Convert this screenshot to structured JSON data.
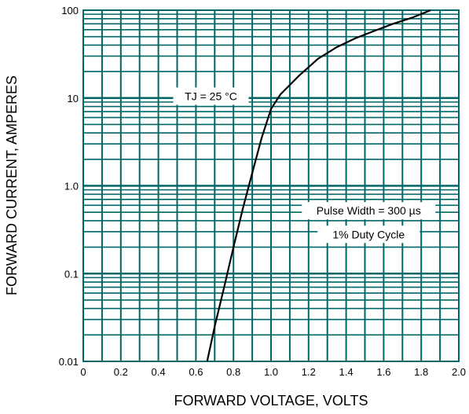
{
  "chart_data": {
    "type": "line",
    "title": "",
    "xlabel": "FORWARD VOLTAGE, VOLTS",
    "ylabel": "FORWARD CURRENT, AMPERES",
    "xlim": [
      0,
      2.0
    ],
    "ylim": [
      0.01,
      100
    ],
    "y_scale": "log",
    "grid": true,
    "grid_color": "#006666",
    "curve_color": "#000000",
    "x_ticks": [
      {
        "value": 0,
        "label": "0"
      },
      {
        "value": 0.2,
        "label": "0.2"
      },
      {
        "value": 0.4,
        "label": "0.4"
      },
      {
        "value": 0.6,
        "label": "0.6"
      },
      {
        "value": 0.8,
        "label": "0.8"
      },
      {
        "value": 1.0,
        "label": "1.0"
      },
      {
        "value": 1.2,
        "label": "1.2"
      },
      {
        "value": 1.4,
        "label": "1.4"
      },
      {
        "value": 1.6,
        "label": "1.6"
      },
      {
        "value": 1.8,
        "label": "1.8"
      },
      {
        "value": 2.0,
        "label": "2.0"
      }
    ],
    "y_ticks": [
      {
        "value": 100,
        "label": "100"
      },
      {
        "value": 10,
        "label": "10"
      },
      {
        "value": 1,
        "label": "1.0"
      },
      {
        "value": 0.1,
        "label": "0.1"
      },
      {
        "value": 0.01,
        "label": "0.01"
      }
    ],
    "series": [
      {
        "x": [
          0.66,
          0.7,
          0.75,
          0.8,
          0.85,
          0.9,
          0.95,
          1.0,
          1.05,
          1.15,
          1.25,
          1.35,
          1.45,
          1.55,
          1.65,
          1.75,
          1.85
        ],
        "y": [
          0.01,
          0.025,
          0.07,
          0.2,
          0.55,
          1.4,
          3.5,
          7.5,
          11,
          18,
          28,
          38,
          48,
          58,
          70,
          82,
          100
        ]
      }
    ],
    "annotations": [
      {
        "id": "tj",
        "text": "TJ = 25 °C",
        "x": 0.68,
        "y": 10.5
      },
      {
        "id": "pulse",
        "text": "Pulse Width = 300 µs",
        "x": 1.52,
        "y": 0.52
      },
      {
        "id": "duty",
        "text": "1% Duty Cycle",
        "x": 1.52,
        "y": 0.28
      }
    ]
  }
}
